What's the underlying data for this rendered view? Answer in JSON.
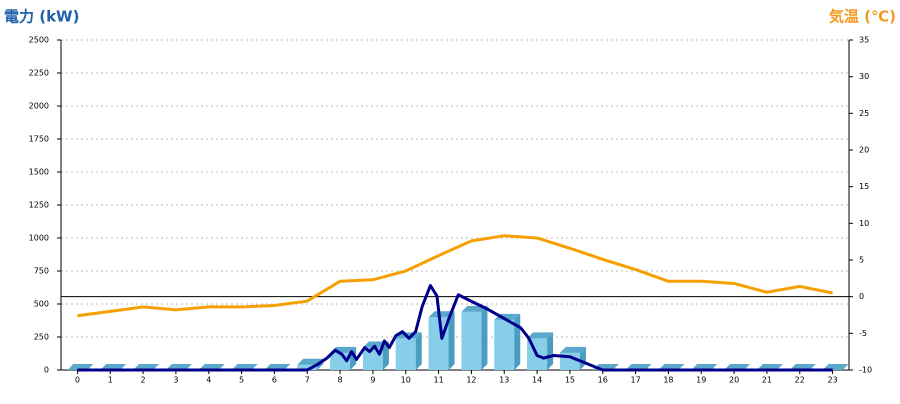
{
  "chart_data": {
    "type": "combo",
    "y_label": "電力 (kW)",
    "y2_label": "気温 (℃)",
    "xlim": [
      -0.5,
      23.5
    ],
    "xticks": [
      0,
      1,
      2,
      3,
      4,
      5,
      6,
      7,
      8,
      9,
      10,
      11,
      12,
      13,
      14,
      15,
      16,
      17,
      18,
      19,
      20,
      21,
      22,
      23
    ],
    "ylim": [
      0,
      2500
    ],
    "yticks": [
      0,
      250,
      500,
      750,
      1000,
      1250,
      1500,
      1750,
      2000,
      2250,
      2500
    ],
    "y2lim": [
      -10,
      35
    ],
    "y2ticks": [
      -10,
      -5,
      0,
      5,
      10,
      15,
      20,
      25,
      30,
      35
    ],
    "grid": true,
    "bars": {
      "color": "#87ceeb",
      "values": [
        0,
        0,
        0,
        0,
        0,
        0,
        0,
        40,
        130,
        170,
        240,
        400,
        440,
        380,
        240,
        130,
        0,
        0,
        0,
        0,
        0,
        0,
        0,
        0
      ]
    },
    "power": {
      "color": "#00008b",
      "x": [
        0,
        7,
        7.3,
        7.6,
        7.85,
        8.05,
        8.2,
        8.35,
        8.5,
        8.75,
        8.9,
        9.05,
        9.2,
        9.35,
        9.5,
        9.7,
        9.9,
        10.1,
        10.3,
        10.5,
        10.75,
        10.95,
        11.1,
        11.3,
        11.6,
        12,
        12.5,
        13,
        13.5,
        13.75,
        14,
        14.2,
        14.5,
        15,
        15.5,
        16,
        23
      ],
      "values": [
        0,
        0,
        40,
        90,
        150,
        120,
        70,
        140,
        80,
        170,
        140,
        180,
        120,
        220,
        170,
        260,
        290,
        240,
        290,
        480,
        640,
        560,
        240,
        380,
        570,
        520,
        460,
        390,
        320,
        240,
        110,
        90,
        110,
        100,
        50,
        0,
        0
      ]
    },
    "temperature": {
      "color": "#f5a000",
      "axis": "y2",
      "values": [
        -2.6,
        -2.0,
        -1.4,
        -1.8,
        -1.4,
        -1.4,
        -1.2,
        -0.6,
        2.1,
        2.3,
        3.5,
        5.6,
        7.6,
        8.3,
        8.0,
        6.6,
        5.1,
        3.7,
        2.1,
        2.1,
        1.8,
        0.6,
        1.4,
        0.5
      ]
    }
  }
}
